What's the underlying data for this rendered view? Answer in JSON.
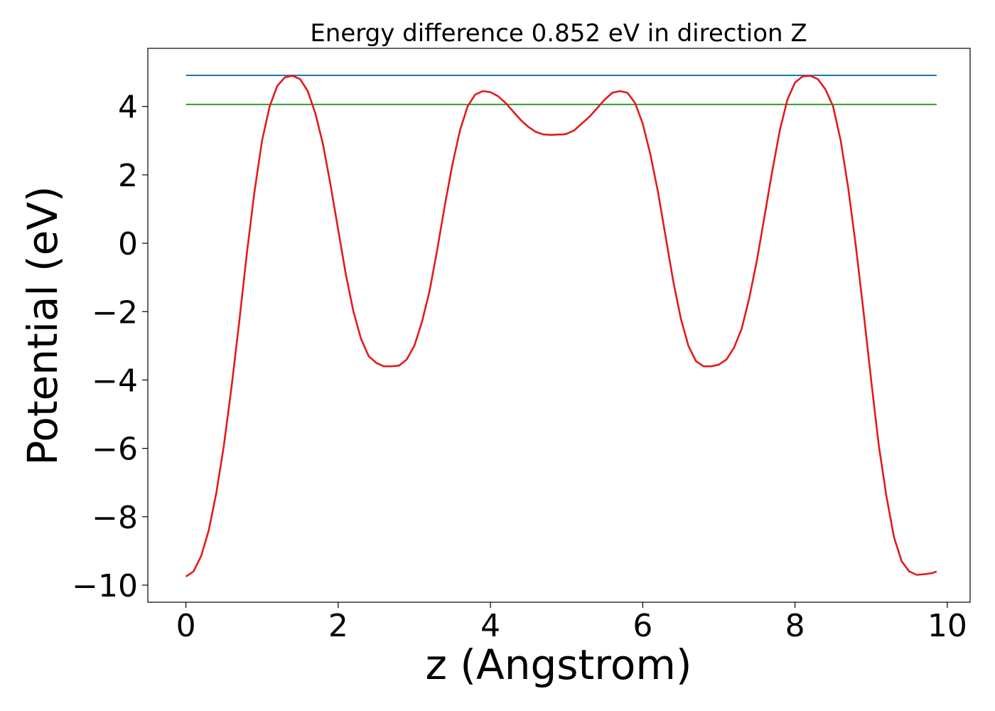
{
  "chart_data": {
    "type": "line",
    "title": "Energy difference 0.852 eV in direction Z",
    "xlabel": "z (Angstrom)",
    "ylabel": "Potential (eV)",
    "xlim": [
      -0.5,
      10.3
    ],
    "ylim": [
      -10.5,
      5.7
    ],
    "xticks": [
      0,
      2,
      4,
      6,
      8,
      10
    ],
    "xtick_labels": [
      "0",
      "2",
      "4",
      "6",
      "8",
      "10"
    ],
    "yticks": [
      -10,
      -8,
      -6,
      -4,
      -2,
      0,
      2,
      4
    ],
    "ytick_labels": [
      "−10",
      "−8",
      "−6",
      "−4",
      "−2",
      "0",
      "2",
      "4"
    ],
    "grid": false,
    "legend": false,
    "series": [
      {
        "color": "#1f77b4",
        "x": [
          0.0,
          9.86
        ],
        "y": [
          4.91,
          4.91
        ]
      },
      {
        "color": "#2ca02c",
        "x": [
          0.0,
          9.86
        ],
        "y": [
          4.06,
          4.06
        ]
      },
      {
        "color": "#e31a1c",
        "x": [
          0.0,
          0.1,
          0.2,
          0.3,
          0.4,
          0.5,
          0.6,
          0.7,
          0.8,
          0.9,
          1.0,
          1.1,
          1.2,
          1.3,
          1.4,
          1.5,
          1.6,
          1.7,
          1.8,
          1.9,
          2.0,
          2.1,
          2.2,
          2.3,
          2.4,
          2.5,
          2.6,
          2.7,
          2.8,
          2.9,
          3.0,
          3.1,
          3.2,
          3.3,
          3.4,
          3.5,
          3.6,
          3.7,
          3.8,
          3.9,
          4.0,
          4.1,
          4.2,
          4.3,
          4.4,
          4.5,
          4.6,
          4.7,
          4.8,
          4.9,
          4.95,
          5.0,
          5.1,
          5.2,
          5.3,
          5.4,
          5.5,
          5.6,
          5.7,
          5.8,
          5.9,
          6.0,
          6.1,
          6.2,
          6.3,
          6.4,
          6.5,
          6.6,
          6.7,
          6.8,
          6.9,
          7.0,
          7.1,
          7.2,
          7.3,
          7.4,
          7.5,
          7.6,
          7.7,
          7.8,
          7.9,
          8.0,
          8.1,
          8.2,
          8.3,
          8.4,
          8.5,
          8.6,
          8.7,
          8.8,
          8.9,
          9.0,
          9.1,
          9.2,
          9.3,
          9.4,
          9.5,
          9.6,
          9.7,
          9.8,
          9.86
        ],
        "y": [
          -9.75,
          -9.6,
          -9.15,
          -8.4,
          -7.3,
          -5.9,
          -4.2,
          -2.3,
          -0.3,
          1.5,
          3.0,
          4.0,
          4.6,
          4.85,
          4.9,
          4.8,
          4.45,
          3.8,
          2.9,
          1.7,
          0.4,
          -0.9,
          -2.0,
          -2.8,
          -3.3,
          -3.5,
          -3.6,
          -3.6,
          -3.58,
          -3.4,
          -3.0,
          -2.3,
          -1.4,
          -0.2,
          1.1,
          2.3,
          3.3,
          4.0,
          4.35,
          4.45,
          4.42,
          4.3,
          4.1,
          3.85,
          3.6,
          3.4,
          3.25,
          3.18,
          3.17,
          3.18,
          3.18,
          3.2,
          3.3,
          3.5,
          3.7,
          3.95,
          4.2,
          4.4,
          4.45,
          4.4,
          4.1,
          3.5,
          2.6,
          1.5,
          0.2,
          -1.1,
          -2.2,
          -3.0,
          -3.45,
          -3.6,
          -3.6,
          -3.55,
          -3.4,
          -3.05,
          -2.5,
          -1.6,
          -0.5,
          0.8,
          2.1,
          3.3,
          4.2,
          4.7,
          4.88,
          4.9,
          4.8,
          4.5,
          4.0,
          3.0,
          1.6,
          -0.1,
          -2.0,
          -4.0,
          -5.9,
          -7.4,
          -8.6,
          -9.3,
          -9.6,
          -9.7,
          -9.68,
          -9.65,
          -9.6
        ]
      }
    ]
  }
}
